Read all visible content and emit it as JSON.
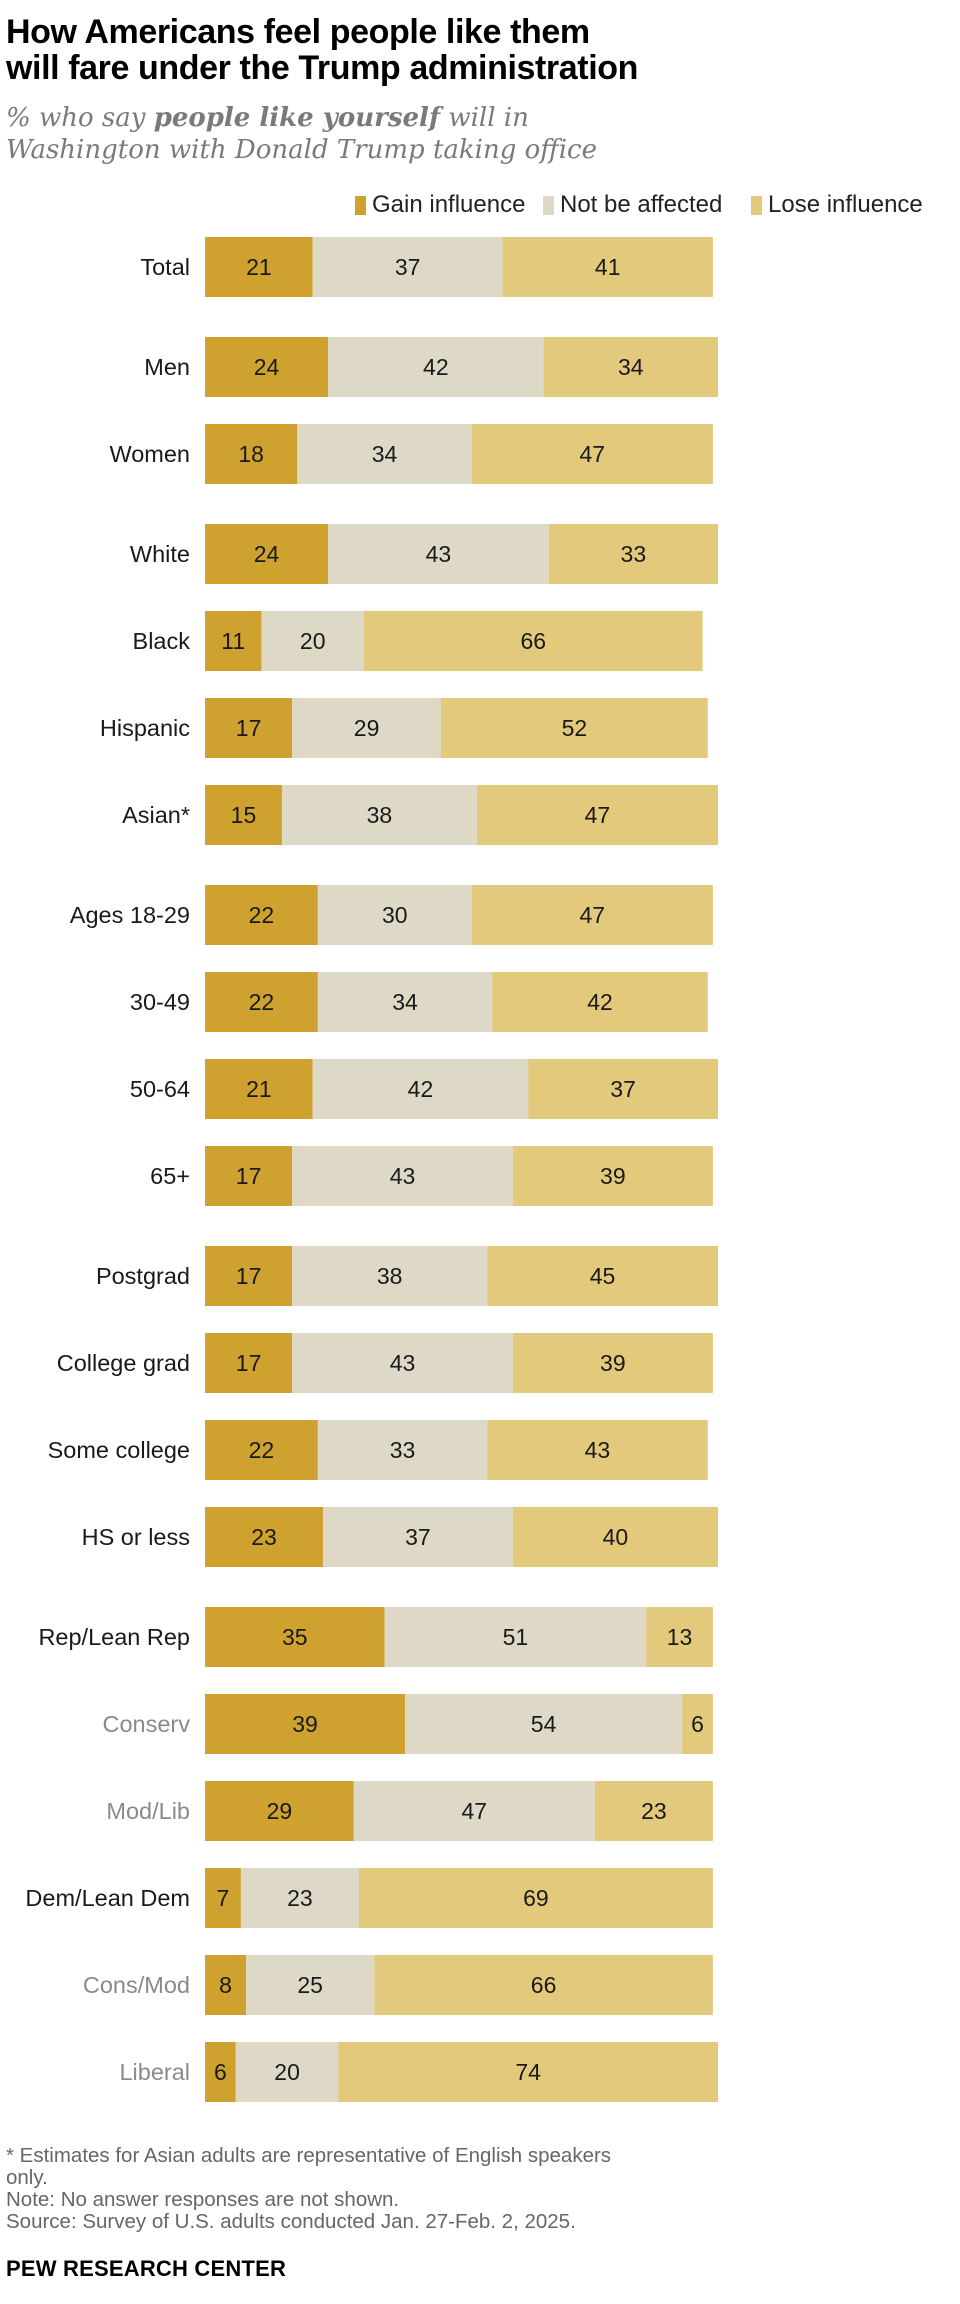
{
  "header": {
    "title_line1": "How Americans feel people like them",
    "title_line2": "will fare under the Trump administration",
    "subtitle_prefix": "% who say ",
    "subtitle_emphasis": "people like yourself",
    "subtitle_rest_line1": " will in",
    "subtitle_line2": "Washington with Donald Trump taking office"
  },
  "colors": {
    "gain": "#CFA12E",
    "not_affected": "#DDD9C6",
    "lose": "#E3C97C",
    "label_dark": "#1a1a1a",
    "label_gray": "#8a8a8a"
  },
  "chart_data": {
    "type": "bar",
    "orientation": "horizontal",
    "stacked": true,
    "legend_position": "top-right",
    "grid": false,
    "categories": [
      "Total",
      "Men",
      "Women",
      "White",
      "Black",
      "Hispanic",
      "Asian*",
      "Ages 18-29",
      "30-49",
      "50-64",
      "65+",
      "Postgrad",
      "College grad",
      "Some college",
      "HS or less",
      "Rep/Lean Rep",
      "Conserv",
      "Mod/Lib",
      "Dem/Lean Dem",
      "Cons/Mod",
      "Liberal"
    ],
    "group_index": [
      0,
      1,
      1,
      2,
      2,
      2,
      2,
      3,
      3,
      3,
      3,
      4,
      4,
      4,
      4,
      5,
      5,
      5,
      5,
      5,
      5
    ],
    "subgroup": [
      false,
      false,
      false,
      false,
      false,
      false,
      false,
      false,
      false,
      false,
      false,
      false,
      false,
      false,
      false,
      false,
      true,
      true,
      false,
      true,
      true
    ],
    "series": [
      {
        "name": "Gain influence",
        "values": [
          21,
          24,
          18,
          24,
          11,
          17,
          15,
          22,
          22,
          21,
          17,
          17,
          17,
          22,
          23,
          35,
          39,
          29,
          7,
          8,
          6
        ]
      },
      {
        "name": "Not be affected",
        "values": [
          37,
          42,
          34,
          43,
          20,
          29,
          38,
          30,
          34,
          42,
          43,
          38,
          43,
          33,
          37,
          51,
          54,
          47,
          23,
          25,
          20
        ]
      },
      {
        "name": "Lose influence",
        "values": [
          41,
          34,
          47,
          33,
          66,
          52,
          47,
          47,
          42,
          37,
          39,
          45,
          39,
          43,
          40,
          13,
          6,
          23,
          69,
          66,
          74
        ]
      }
    ]
  },
  "footer": {
    "note1_line1": "* Estimates for Asian adults are representative of English speakers",
    "note1_line2": "only.",
    "note2": "Note: No answer responses are not shown.",
    "source": "Source: Survey of U.S. adults conducted Jan. 27-Feb. 2, 2025.",
    "brand": "PEW RESEARCH CENTER"
  }
}
